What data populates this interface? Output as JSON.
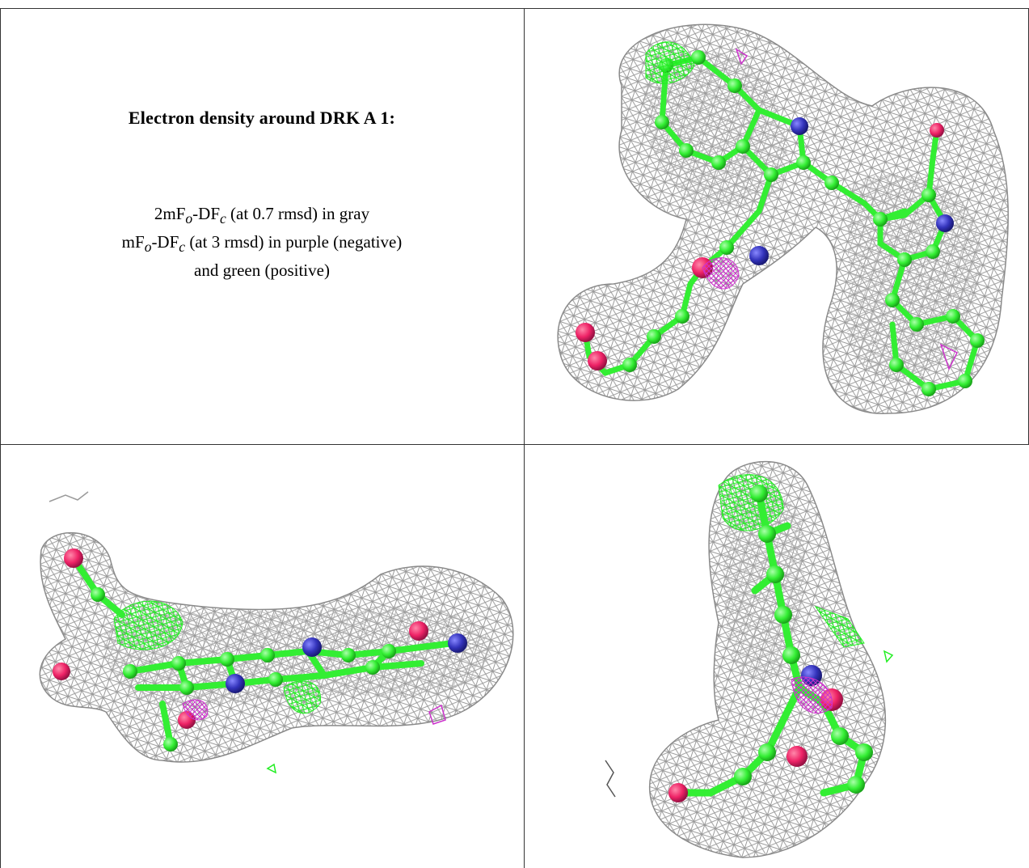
{
  "caption": {
    "title": "Electron density around DRK A 1:",
    "map_2fofc": {
      "prefix": "2mF",
      "sub_o": "o",
      "mid": "-DF",
      "sub_c": "c",
      "suffix": " (at 0.7 rmsd) in gray"
    },
    "map_fofc": {
      "prefix": "mF",
      "sub_o": "o",
      "mid": "-DF",
      "sub_c": "c",
      "suffix": " (at 3 rmsd) in purple (negative)"
    },
    "line3": "and green (positive)"
  },
  "colors": {
    "mesh_gray": "#9a9a9a",
    "carbon_green": "#33ee33",
    "nitrogen_blue": "#3333bb",
    "oxygen_red": "#ee2266",
    "negative_purple": "#cc33cc",
    "positive_green": "#22ee22"
  },
  "panels": [
    {
      "view": "front"
    },
    {
      "view": "side"
    },
    {
      "view": "end-on"
    }
  ]
}
